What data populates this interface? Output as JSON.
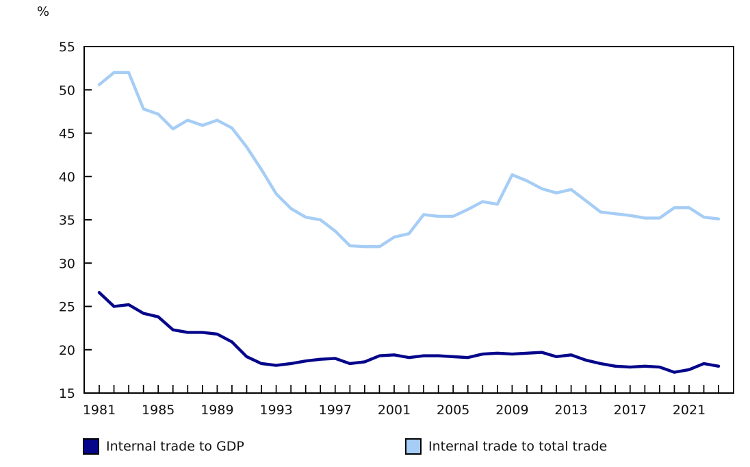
{
  "percent_label": "%",
  "colors": {
    "axis": "#000000",
    "text": "#111111",
    "gdp_line": "#06068B",
    "total_trade_line": "#A5CDF5"
  },
  "legend": {
    "items": [
      {
        "label": "Internal trade to GDP",
        "color": "#06068B"
      },
      {
        "label": "Internal trade to total trade",
        "color": "#A5CDF5"
      }
    ]
  },
  "chart_data": {
    "type": "line",
    "title": "",
    "ylabel": "%",
    "xlabel": "",
    "grid": false,
    "legend_position": "bottom",
    "ylim": [
      15,
      55
    ],
    "yticks": [
      15,
      20,
      25,
      30,
      35,
      40,
      45,
      50,
      55
    ],
    "xlim": [
      1980,
      2024
    ],
    "x": [
      1981,
      1982,
      1983,
      1984,
      1985,
      1986,
      1987,
      1988,
      1989,
      1990,
      1991,
      1992,
      1993,
      1994,
      1995,
      1996,
      1997,
      1998,
      1999,
      2000,
      2001,
      2002,
      2003,
      2004,
      2005,
      2006,
      2007,
      2008,
      2009,
      2010,
      2011,
      2012,
      2013,
      2014,
      2015,
      2016,
      2017,
      2018,
      2019,
      2020,
      2021,
      2022,
      2023
    ],
    "xtick_labels": [
      1981,
      1985,
      1989,
      1993,
      1997,
      2001,
      2005,
      2009,
      2013,
      2017,
      2021
    ],
    "series": [
      {
        "name": "Internal trade to GDP",
        "color": "#06068B",
        "values": [
          26.6,
          25.0,
          25.2,
          24.2,
          23.8,
          22.3,
          22.0,
          22.0,
          21.8,
          20.9,
          19.2,
          18.4,
          18.2,
          18.4,
          18.7,
          18.9,
          19.0,
          18.4,
          18.6,
          19.3,
          19.4,
          19.1,
          19.3,
          19.3,
          19.2,
          19.1,
          19.5,
          19.6,
          19.5,
          19.6,
          19.7,
          19.2,
          19.4,
          18.8,
          18.4,
          18.1,
          18.0,
          18.1,
          18.0,
          17.4,
          17.7,
          18.4,
          18.1
        ]
      },
      {
        "name": "Internal trade to total trade",
        "color": "#A5CDF5",
        "values": [
          50.6,
          52.0,
          52.0,
          47.8,
          47.2,
          45.5,
          46.5,
          45.9,
          46.5,
          45.6,
          43.4,
          40.8,
          38.0,
          36.3,
          35.3,
          35.0,
          33.7,
          32.0,
          31.9,
          31.9,
          33.0,
          33.4,
          35.6,
          35.4,
          35.4,
          36.2,
          37.1,
          36.8,
          40.2,
          39.5,
          38.6,
          38.1,
          38.5,
          37.2,
          35.9,
          35.7,
          35.5,
          35.2,
          35.2,
          36.4,
          36.4,
          35.3,
          35.1
        ]
      }
    ]
  }
}
